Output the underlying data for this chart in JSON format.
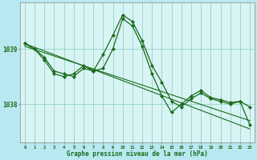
{
  "bg_color": "#b8e8f0",
  "plot_bg_color": "#d8f4f4",
  "grid_color": "#88ccbb",
  "line_color": "#1a6b1a",
  "xlabel": "Graphe pression niveau de la mer (hPa)",
  "yticks": [
    1038,
    1039
  ],
  "ylim": [
    1037.3,
    1039.85
  ],
  "xlim": [
    -0.5,
    23.5
  ],
  "xticks": [
    0,
    1,
    2,
    3,
    4,
    5,
    6,
    7,
    8,
    9,
    10,
    11,
    12,
    13,
    14,
    15,
    16,
    17,
    18,
    19,
    20,
    21,
    22,
    23
  ],
  "trend1": {
    "x": [
      0,
      23
    ],
    "y": [
      1039.1,
      1037.55
    ]
  },
  "trend2": {
    "x": [
      0,
      23
    ],
    "y": [
      1039.05,
      1037.7
    ]
  },
  "wiggly1": {
    "x": [
      0,
      1,
      2,
      3,
      4,
      5,
      6,
      7,
      8,
      9,
      10,
      11,
      12,
      13,
      14,
      15,
      16,
      17,
      18,
      19,
      20,
      21,
      22,
      23
    ],
    "y": [
      1039.1,
      1039.0,
      1038.85,
      1038.6,
      1038.55,
      1038.5,
      1038.65,
      1038.6,
      1038.9,
      1039.25,
      1039.62,
      1039.5,
      1039.15,
      1038.7,
      1038.4,
      1038.05,
      1037.95,
      1038.1,
      1038.2,
      1038.1,
      1038.05,
      1038.0,
      1038.05,
      1037.95
    ]
  },
  "wiggly2": {
    "x": [
      0,
      1,
      2,
      3,
      4,
      5,
      6,
      7,
      8,
      9,
      10,
      11,
      12,
      13,
      14,
      15,
      16,
      17,
      18,
      19,
      20,
      21,
      22,
      23
    ],
    "y": [
      1039.1,
      1039.0,
      1038.8,
      1038.55,
      1038.5,
      1038.55,
      1038.7,
      1038.6,
      1038.65,
      1039.0,
      1039.55,
      1039.42,
      1039.05,
      1038.55,
      1038.15,
      1037.85,
      1038.0,
      1038.15,
      1038.25,
      1038.12,
      1038.08,
      1038.03,
      1038.05,
      1037.62
    ]
  }
}
